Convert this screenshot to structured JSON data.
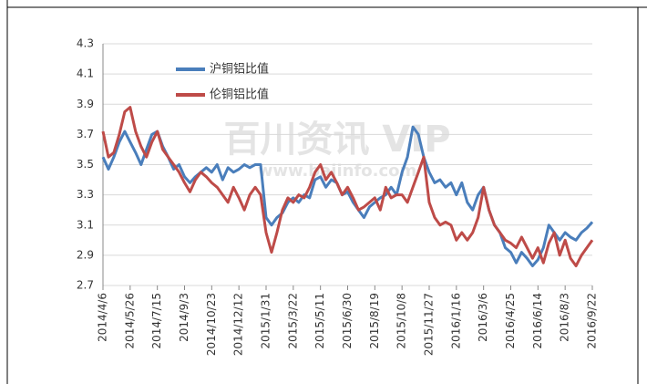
{
  "chart_data": {
    "type": "line",
    "categories": [
      "2014/4/6",
      null,
      null,
      null,
      null,
      "2014/5/26",
      null,
      null,
      null,
      null,
      "2014/7/15",
      null,
      null,
      null,
      null,
      "2014/9/3",
      null,
      null,
      null,
      null,
      "2014/10/23",
      null,
      null,
      null,
      null,
      "2014/12/12",
      null,
      null,
      null,
      null,
      "2015/1/31",
      null,
      null,
      null,
      null,
      "2015/3/22",
      null,
      null,
      null,
      null,
      "2015/5/11",
      null,
      null,
      null,
      null,
      "2015/6/30",
      null,
      null,
      null,
      null,
      "2015/8/19",
      null,
      null,
      null,
      null,
      "2015/10/8",
      null,
      null,
      null,
      null,
      "2015/11/27",
      null,
      null,
      null,
      null,
      "2016/1/16",
      null,
      null,
      null,
      null,
      "2016/3/6",
      null,
      null,
      null,
      null,
      "2016/4/25",
      null,
      null,
      null,
      null,
      "2016/6/14",
      null,
      null,
      null,
      null,
      "2016/8/3",
      null,
      null,
      null,
      null,
      "2016/9/22"
    ],
    "series": [
      {
        "name": "沪铜铝比值",
        "color": "#4a7ebb",
        "values": [
          3.55,
          3.47,
          3.55,
          3.65,
          3.72,
          3.65,
          3.58,
          3.5,
          3.6,
          3.7,
          3.72,
          3.62,
          3.55,
          3.47,
          3.5,
          3.42,
          3.38,
          3.42,
          3.45,
          3.48,
          3.45,
          3.5,
          3.4,
          3.48,
          3.45,
          3.47,
          3.5,
          3.48,
          3.5,
          3.5,
          3.15,
          3.1,
          3.15,
          3.18,
          3.25,
          3.28,
          3.25,
          3.3,
          3.28,
          3.4,
          3.42,
          3.35,
          3.4,
          3.38,
          3.3,
          3.32,
          3.25,
          3.2,
          3.15,
          3.22,
          3.25,
          3.28,
          3.3,
          3.35,
          3.3,
          3.45,
          3.55,
          3.75,
          3.7,
          3.55,
          3.45,
          3.38,
          3.4,
          3.35,
          3.38,
          3.3,
          3.38,
          3.25,
          3.2,
          3.3,
          3.35,
          3.2,
          3.1,
          3.05,
          2.95,
          2.92,
          2.85,
          2.92,
          2.88,
          2.83,
          2.87,
          2.95,
          3.1,
          3.05,
          3.0,
          3.05,
          3.02,
          3.0,
          3.05,
          3.08,
          3.12
        ]
      },
      {
        "name": "伦铜铝比值",
        "color": "#be4b48",
        "values": [
          3.72,
          3.55,
          3.58,
          3.7,
          3.85,
          3.88,
          3.72,
          3.62,
          3.55,
          3.65,
          3.72,
          3.6,
          3.55,
          3.5,
          3.45,
          3.38,
          3.32,
          3.4,
          3.45,
          3.42,
          3.38,
          3.35,
          3.3,
          3.25,
          3.35,
          3.28,
          3.2,
          3.3,
          3.35,
          3.3,
          3.05,
          2.92,
          3.05,
          3.2,
          3.28,
          3.25,
          3.3,
          3.28,
          3.35,
          3.45,
          3.5,
          3.4,
          3.45,
          3.38,
          3.3,
          3.35,
          3.28,
          3.2,
          3.22,
          3.25,
          3.28,
          3.2,
          3.35,
          3.28,
          3.3,
          3.3,
          3.25,
          3.35,
          3.45,
          3.55,
          3.25,
          3.15,
          3.1,
          3.12,
          3.1,
          3.0,
          3.05,
          3.0,
          3.05,
          3.15,
          3.35,
          3.2,
          3.1,
          3.05,
          3.0,
          2.98,
          2.95,
          3.02,
          2.95,
          2.88,
          2.95,
          2.85,
          2.98,
          3.05,
          2.9,
          3.0,
          2.88,
          2.83,
          2.9,
          2.95,
          3.0
        ]
      }
    ],
    "ylim": [
      2.7,
      4.3
    ],
    "yticks": [
      2.7,
      2.9,
      3.1,
      3.3,
      3.5,
      3.7,
      3.9,
      4.1,
      4.3
    ],
    "grid": true,
    "annotations": [
      "百川资讯 VIP",
      "www.baiinfo.com"
    ]
  }
}
